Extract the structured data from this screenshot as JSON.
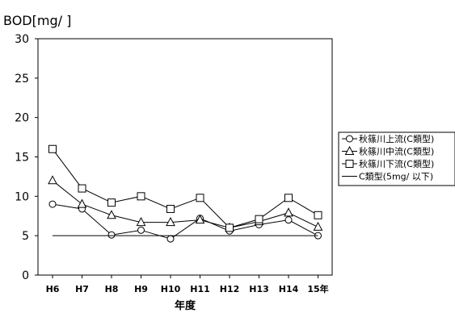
{
  "chart_data": {
    "type": "line",
    "ylabel": "BOD[mg/  ]",
    "xlabel": "年度",
    "categories": [
      "H6",
      "H7",
      "H8",
      "H9",
      "H10",
      "H11",
      "H12",
      "H13",
      "H14",
      "15年"
    ],
    "ylim": [
      0,
      30
    ],
    "yticks": [
      "0",
      "5",
      "10",
      "15",
      "20",
      "25",
      "30"
    ],
    "grid": false,
    "legend_position": "right",
    "series": [
      {
        "name": "秋篠川上流(C類型)",
        "marker": "circle",
        "values": [
          9.0,
          8.4,
          5.1,
          5.7,
          4.6,
          7.2,
          5.6,
          6.4,
          7.0,
          5.0
        ]
      },
      {
        "name": "秋篠川中流(C類型)",
        "marker": "triangle",
        "values": [
          12.0,
          9.0,
          7.6,
          6.7,
          6.7,
          7.0,
          6.0,
          6.8,
          7.9,
          6.1
        ]
      },
      {
        "name": "秋篠川下流(C類型)",
        "marker": "square",
        "values": [
          16.0,
          11.0,
          9.2,
          10.0,
          8.4,
          9.8,
          6.0,
          7.1,
          9.8,
          7.6
        ]
      },
      {
        "name": "C類型(5mg/  以下)",
        "marker": "none",
        "values": [
          5,
          5,
          5,
          5,
          5,
          5,
          5,
          5,
          5,
          5
        ]
      }
    ],
    "colors": {
      "line": "#000000",
      "marker_fill": "#ffffff"
    }
  }
}
